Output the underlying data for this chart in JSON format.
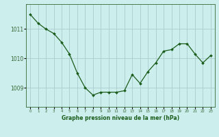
{
  "x": [
    0,
    1,
    2,
    3,
    4,
    5,
    6,
    7,
    8,
    9,
    10,
    11,
    12,
    13,
    14,
    15,
    16,
    17,
    18,
    19,
    20,
    21,
    22,
    23
  ],
  "y": [
    1011.5,
    1011.2,
    1011.0,
    1010.85,
    1010.55,
    1010.15,
    1009.5,
    1009.0,
    1008.75,
    1008.85,
    1008.85,
    1008.85,
    1008.9,
    1009.45,
    1009.15,
    1009.55,
    1009.85,
    1010.25,
    1010.3,
    1010.5,
    1010.5,
    1010.15,
    1009.85,
    1010.1
  ],
  "line_color": "#1a5c1a",
  "marker_color": "#1a5c1a",
  "bg_color": "#cceeed",
  "grid_color": "#aacccc",
  "xlabel": "Graphe pression niveau de la mer (hPa)",
  "xlabel_color": "#1a5c1a",
  "tick_color": "#336633",
  "yticks": [
    1009,
    1010,
    1011
  ],
  "ylim": [
    1008.35,
    1011.85
  ],
  "xlim": [
    -0.5,
    23.5
  ]
}
